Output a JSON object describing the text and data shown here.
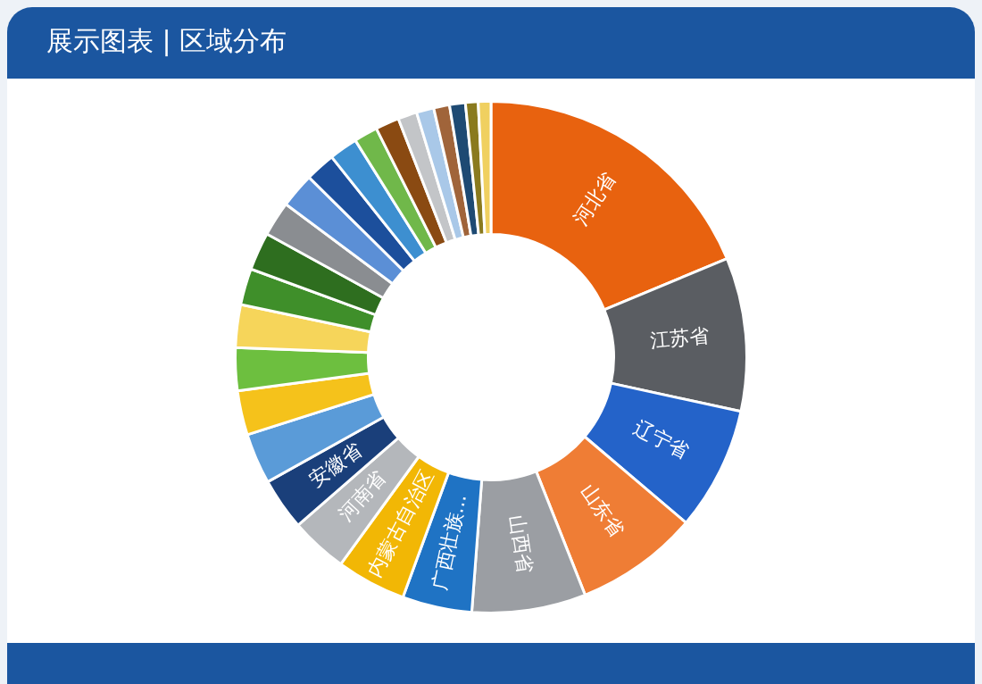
{
  "chart_data": {
    "type": "donut",
    "title": "展示图表 | 区域分布",
    "categories": [
      "河北省",
      "江苏省",
      "辽宁省",
      "山东省",
      "山西省",
      "广西壮族...",
      "内蒙古自治区",
      "河南省",
      "安徽省",
      null,
      null,
      null,
      null,
      null,
      null,
      null,
      null,
      null,
      null,
      null,
      null,
      null,
      null,
      null,
      null,
      null,
      null
    ],
    "values": [
      18.7,
      9.7,
      7.8,
      7.8,
      7.2,
      4.4,
      4.4,
      3.6,
      3.3,
      3.2,
      2.8,
      2.7,
      2.7,
      2.3,
      2.4,
      2.2,
      2.2,
      1.9,
      1.8,
      1.5,
      1.5,
      1.2,
      1.1,
      1.0,
      1.0,
      0.8,
      0.8
    ],
    "colors": [
      "#e8620f",
      "#5a5d62",
      "#2463c9",
      "#ef7d35",
      "#9b9ea3",
      "#1f73c4",
      "#f2b705",
      "#b4b7bb",
      "#1a3f7a",
      "#5a9bd8",
      "#f5c21b",
      "#6dbf3f",
      "#f6d55a",
      "#3f8f2a",
      "#2e6e1f",
      "#8a8d91",
      "#5b8fd6",
      "#1c4f9c",
      "#3d8fd0",
      "#70b84a",
      "#8a4a12",
      "#c3c5c8",
      "#a9c8e8",
      "#a0643a",
      "#1e4a73",
      "#8a7a1e",
      "#f0d060"
    ],
    "legend": false
  }
}
